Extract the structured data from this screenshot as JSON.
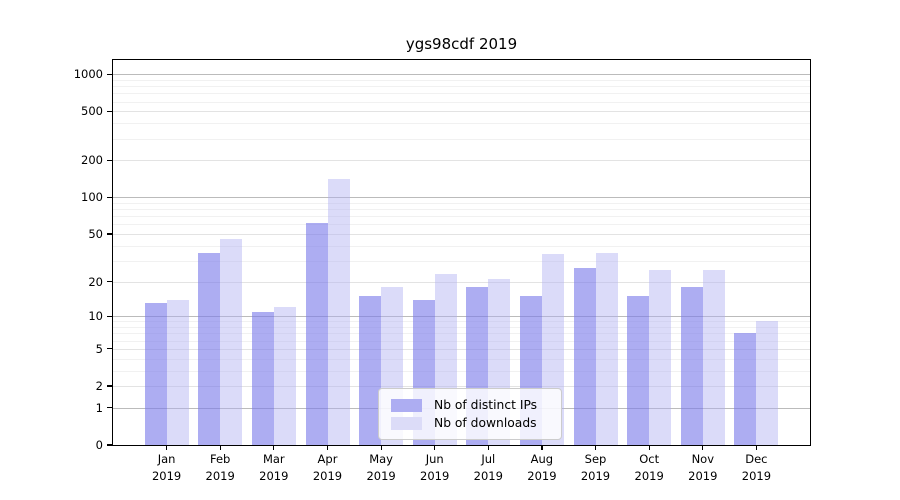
{
  "chart_data": {
    "type": "bar",
    "title": "ygs98cdf 2019",
    "year_label": "2019",
    "categories": [
      "Jan",
      "Feb",
      "Mar",
      "Apr",
      "May",
      "Jun",
      "Jul",
      "Aug",
      "Sep",
      "Oct",
      "Nov",
      "Dec"
    ],
    "series": [
      {
        "name": "Nb of distinct IPs",
        "values": [
          13,
          35,
          11,
          61,
          15,
          14,
          18,
          15,
          26,
          15,
          18,
          7
        ],
        "bar_color": "rgba(122,122,234,0.62)",
        "legend_color": "#adadf2"
      },
      {
        "name": "Nb of downloads",
        "values": [
          14,
          45,
          12,
          140,
          18,
          23,
          21,
          34,
          35,
          25,
          25,
          9
        ],
        "bar_color": "rgba(176,176,242,0.45)",
        "legend_color": "#dcdcf8"
      }
    ],
    "yticks": [
      0,
      1,
      2,
      5,
      10,
      20,
      50,
      100,
      200,
      500,
      1000
    ],
    "scale": "log1p",
    "ylim": [
      0,
      1300
    ],
    "xlabel": "",
    "ylabel": "",
    "grid": true,
    "legend_position": "inside-bottom-center",
    "colors": {
      "grid_power_of_ten": "#bbbbbb",
      "grid_major": "#e3e3e3",
      "grid_minor": "#f1f1f1",
      "axis_border": "#000000",
      "background": "#ffffff"
    }
  }
}
